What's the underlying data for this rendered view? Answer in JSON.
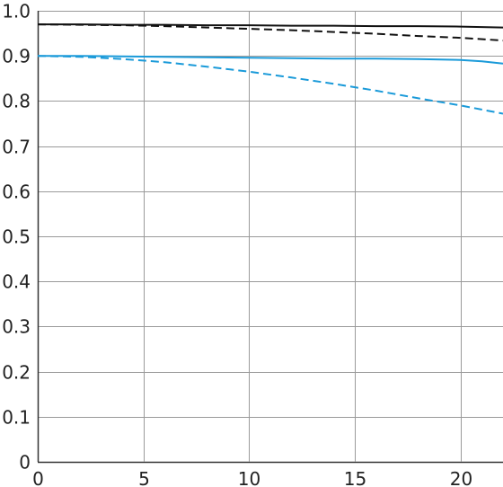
{
  "chart_data": {
    "type": "line",
    "title": "",
    "xlabel": "",
    "ylabel": "",
    "xlim": [
      0,
      22
    ],
    "ylim": [
      0,
      1.0
    ],
    "grid": true,
    "legend": "none",
    "x_ticks": [
      0,
      5,
      10,
      15,
      20
    ],
    "x_tick_labels": [
      "0",
      "5",
      "10",
      "15",
      "20"
    ],
    "y_ticks": [
      0,
      0.1,
      0.2,
      0.3,
      0.4,
      0.5,
      0.6,
      0.7,
      0.8,
      0.9,
      1.0
    ],
    "y_tick_labels": [
      "0",
      "0.1",
      "0.2",
      "0.3",
      "0.4",
      "0.5",
      "0.6",
      "0.7",
      "0.8",
      "0.9",
      "1.0"
    ],
    "series": [
      {
        "color": "#111111",
        "dash": "solid",
        "x": [
          0,
          2,
          4,
          6,
          8,
          10,
          12,
          14,
          16,
          18,
          20,
          22
        ],
        "y": [
          0.97,
          0.97,
          0.969,
          0.969,
          0.968,
          0.968,
          0.967,
          0.967,
          0.966,
          0.966,
          0.965,
          0.963
        ]
      },
      {
        "color": "#111111",
        "dash": "dashed",
        "x": [
          0,
          2,
          4,
          6,
          8,
          10,
          12,
          14,
          16,
          18,
          20,
          22
        ],
        "y": [
          0.97,
          0.969,
          0.968,
          0.966,
          0.963,
          0.96,
          0.957,
          0.953,
          0.949,
          0.944,
          0.94,
          0.934
        ]
      },
      {
        "color": "#1a9ad9",
        "dash": "solid",
        "x": [
          0,
          2,
          4,
          6,
          8,
          10,
          12,
          14,
          16,
          18,
          20,
          21,
          22
        ],
        "y": [
          0.9,
          0.9,
          0.899,
          0.898,
          0.897,
          0.896,
          0.895,
          0.894,
          0.894,
          0.893,
          0.891,
          0.888,
          0.883
        ]
      },
      {
        "color": "#1a9ad9",
        "dash": "dashed",
        "x": [
          0,
          2,
          4,
          6,
          8,
          10,
          12,
          14,
          16,
          18,
          20,
          22
        ],
        "y": [
          0.9,
          0.898,
          0.893,
          0.886,
          0.876,
          0.865,
          0.852,
          0.838,
          0.823,
          0.806,
          0.79,
          0.772
        ]
      }
    ]
  }
}
